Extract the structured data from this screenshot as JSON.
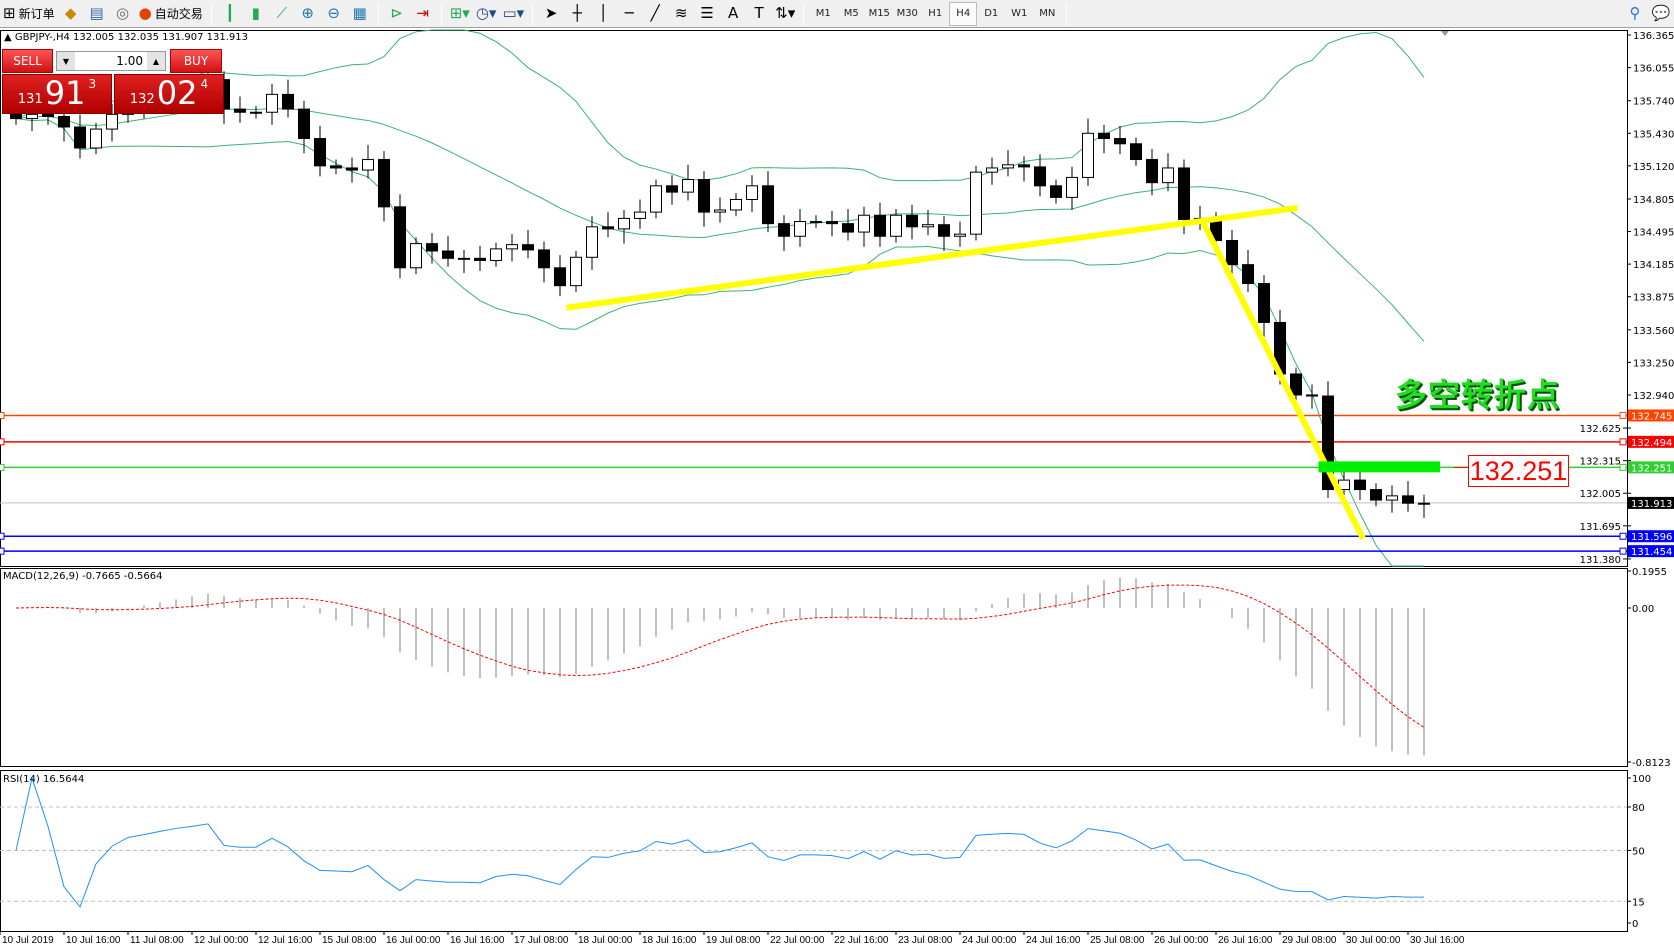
{
  "toolbar": {
    "new_order": "新订单",
    "auto_trading": "自动交易",
    "timeframes": [
      "M1",
      "M5",
      "M15",
      "M30",
      "H1",
      "H4",
      "D1",
      "W1",
      "MN"
    ],
    "active_timeframe": "H4",
    "icons": [
      "new-order-icon",
      "market-watch-icon",
      "navigator-icon",
      "signals-icon",
      "auto-trading-icon",
      "bar-chart-icon",
      "candlestick-icon",
      "line-chart-icon",
      "zoom-in-icon",
      "zoom-out-icon",
      "tile-windows-icon",
      "chart-shift-icon",
      "autoscroll-icon",
      "indicators-icon",
      "periods-icon",
      "templates-icon",
      "cursor-icon",
      "crosshair-icon",
      "vertical-line-icon",
      "horizontal-line-icon",
      "trendline-icon",
      "fibonacci-icon",
      "channel-icon",
      "text-icon",
      "text-label-icon",
      "arrows-icon",
      "search-icon",
      "chat-icon"
    ]
  },
  "chart": {
    "header": "GBPJPY-,H4  132.005 132.035 131.907 131.913"
  },
  "trade_panel": {
    "sell_label": "SELL",
    "buy_label": "BUY",
    "lot": "1.00",
    "sell_price": {
      "big": "131",
      "main": "91",
      "sup": "3"
    },
    "buy_price": {
      "big": "132",
      "main": "02",
      "sup": "4"
    }
  },
  "annotation": {
    "text": "多空转折点",
    "price_label": "132.251"
  },
  "colors": {
    "bollinger": "#3cb371",
    "trendline": "#ffff00",
    "macd_hist": "#c0c0c0",
    "macd_signal": "#ff0000",
    "rsi": "#1e90ff",
    "zone": "#00ee00"
  },
  "chart_data": {
    "type": "candlestick",
    "symbol": "GBPJPY-",
    "timeframe": "H4",
    "close": [
      135.57,
      135.61,
      135.59,
      135.49,
      135.29,
      135.47,
      135.61,
      135.71,
      135.75,
      135.8,
      135.85,
      135.89,
      135.94,
      135.66,
      135.63,
      135.63,
      135.8,
      135.66,
      135.38,
      135.12,
      135.1,
      135.08,
      135.18,
      134.73,
      134.15,
      134.38,
      134.31,
      134.24,
      134.24,
      134.22,
      134.33,
      134.37,
      134.32,
      134.15,
      133.98,
      134.25,
      134.54,
      134.52,
      134.62,
      134.68,
      134.93,
      134.87,
      134.99,
      134.68,
      134.7,
      134.8,
      134.93,
      134.57,
      134.45,
      134.59,
      134.59,
      134.57,
      134.49,
      134.65,
      134.45,
      134.65,
      134.54,
      134.56,
      134.45,
      134.47,
      135.06,
      135.1,
      135.13,
      135.11,
      134.93,
      134.82,
      135.01,
      135.43,
      135.38,
      135.33,
      135.18,
      134.96,
      135.1,
      134.61,
      134.62,
      134.41,
      134.18,
      134.0,
      133.63,
      133.14,
      132.94,
      132.93,
      132.04,
      132.13,
      132.04,
      131.94,
      131.98,
      131.91,
      131.91
    ],
    "price_axis": [
      "136.365",
      "136.055",
      "135.740",
      "135.430",
      "135.120",
      "134.805",
      "134.495",
      "134.185",
      "133.875",
      "133.560",
      "133.250",
      "132.940",
      "132.625",
      "132.315",
      "132.005",
      "131.695",
      "131.380"
    ],
    "current_price": {
      "price": 131.913,
      "label": "131.913",
      "color": "#000000"
    },
    "horizontal_lines": [
      {
        "price": 132.745,
        "label": "132.745",
        "color": "#ff4500"
      },
      {
        "price": 132.494,
        "label": "132.494",
        "color": "#ff0000"
      },
      {
        "price": 132.251,
        "label": "132.251",
        "color": "#32cd32"
      },
      {
        "price": 131.596,
        "label": "131.596",
        "color": "#0000ff"
      },
      {
        "price": 131.454,
        "label": "131.454",
        "color": "#0000ff"
      }
    ],
    "trendlines": [
      {
        "from": {
          "bar": 34.4,
          "price": 133.77
        },
        "to": {
          "bar": 80.1,
          "price": 134.72
        }
      },
      {
        "from": {
          "bar": 74.1,
          "price": 134.61
        },
        "to": {
          "bar": 84.2,
          "price": 131.57
        }
      }
    ],
    "zone": {
      "from_bar": 81.4,
      "to_bar": 89,
      "price": 132.251
    },
    "time_labels": [
      "10 Jul 2019",
      "10 Jul 16:00",
      "11 Jul 08:00",
      "12 Jul 00:00",
      "12 Jul 16:00",
      "15 Jul 08:00",
      "16 Jul 00:00",
      "16 Jul 16:00",
      "17 Jul 08:00",
      "18 Jul 00:00",
      "18 Jul 16:00",
      "19 Jul 08:00",
      "22 Jul 00:00",
      "22 Jul 16:00",
      "23 Jul 08:00",
      "24 Jul 00:00",
      "24 Jul 16:00",
      "25 Jul 08:00",
      "26 Jul 00:00",
      "26 Jul 16:00",
      "29 Jul 08:00",
      "30 Jul 00:00",
      "30 Jul 16:00"
    ],
    "indicators": {
      "bollinger": {
        "period": 20,
        "deviation": 2
      },
      "macd": {
        "label": "MACD(12,26,9) -0.7665 -0.5664",
        "main": -0.7665,
        "signal": -0.5664,
        "axis": [
          "0.1955",
          "0.00",
          "-0.8123"
        ],
        "range": [
          -0.8123,
          0.1955
        ]
      },
      "rsi": {
        "label": "RSI(14) 16.5644",
        "value": 16.5644,
        "axis": [
          "100",
          "80",
          "50",
          "15",
          "0"
        ],
        "levels": [
          80,
          50,
          15
        ]
      }
    }
  }
}
